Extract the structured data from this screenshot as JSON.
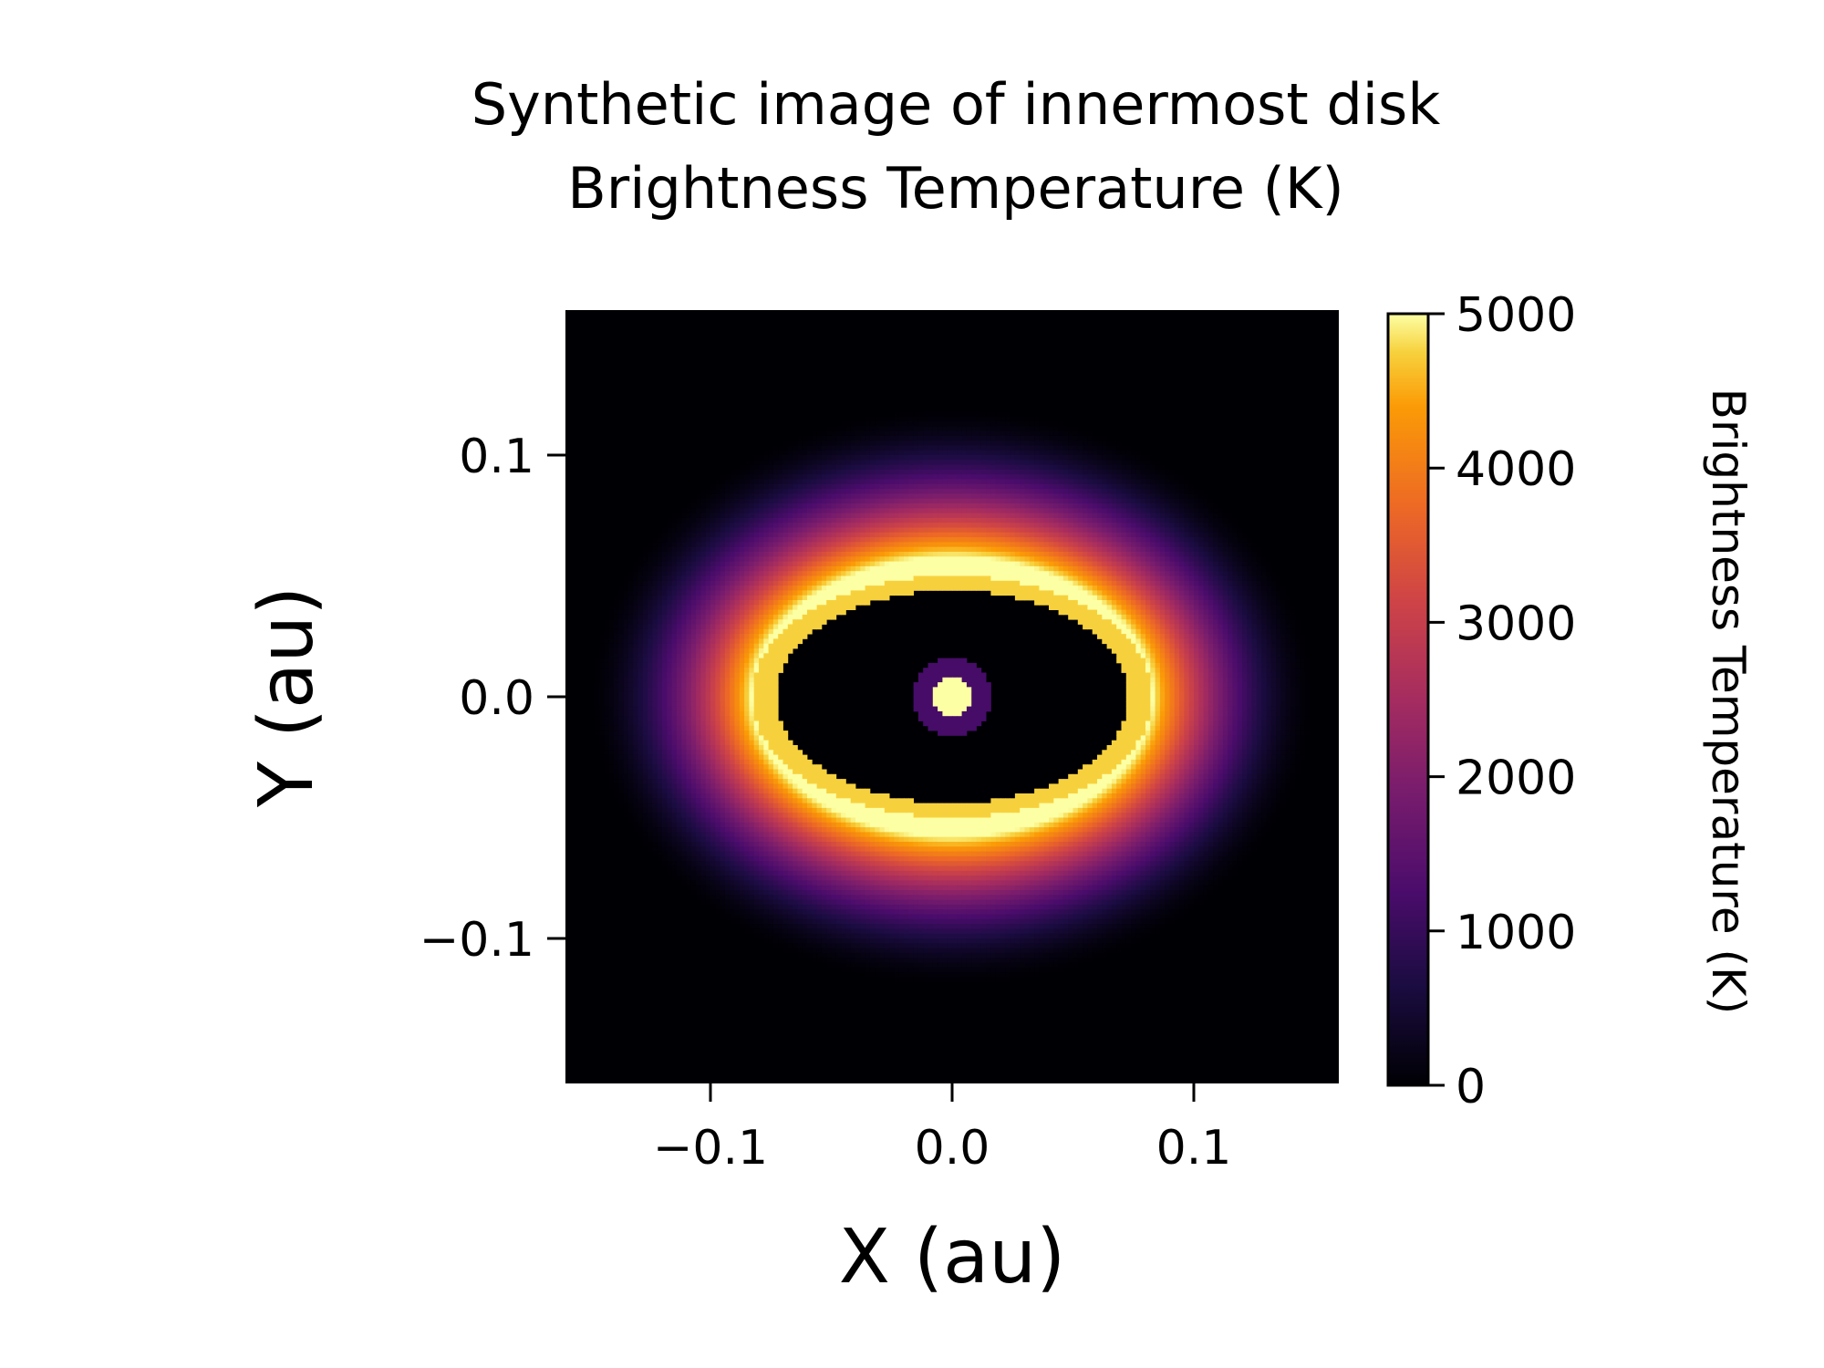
{
  "chart_data": {
    "type": "heatmap",
    "title": [
      "Synthetic image of innermost disk",
      "Brightness Temperature (K)"
    ],
    "xlabel": "X (au)",
    "ylabel": "Y (au)",
    "xlim": [
      -0.16,
      0.16
    ],
    "ylim": [
      -0.16,
      0.16
    ],
    "xticks": [
      -0.1,
      0.0,
      0.1
    ],
    "xtick_labels": [
      "−0.1",
      "0.0",
      "0.1"
    ],
    "yticks": [
      0.1,
      0.0,
      -0.1
    ],
    "ytick_labels": [
      "0.1",
      "0.0",
      "−0.1"
    ],
    "colormap": "inferno",
    "colorbar": {
      "label": "Brightness Temperature (K)",
      "range": [
        0,
        5000
      ],
      "ticks": [
        0,
        1000,
        2000,
        3000,
        4000,
        5000
      ],
      "tick_labels": [
        "0",
        "1000",
        "2000",
        "3000",
        "4000",
        "5000"
      ]
    },
    "features": {
      "star": {
        "center": [
          0.0,
          0.0
        ],
        "radius_au": 0.008,
        "temperature_K": 5000
      },
      "star_halo": {
        "radius_au": 0.016,
        "temperature_K": 1200
      },
      "inner_cavity": {
        "semi_major_au": 0.073,
        "semi_minor_au": 0.044,
        "temperature_K": 0
      },
      "ring_peak": {
        "semi_major_au": 0.083,
        "semi_minor_au": 0.058,
        "temperature_K": 5000
      },
      "outer_falloff": {
        "semi_major_au": 0.15,
        "semi_minor_au": 0.12,
        "temperature_K": 0
      }
    },
    "grid": false
  }
}
